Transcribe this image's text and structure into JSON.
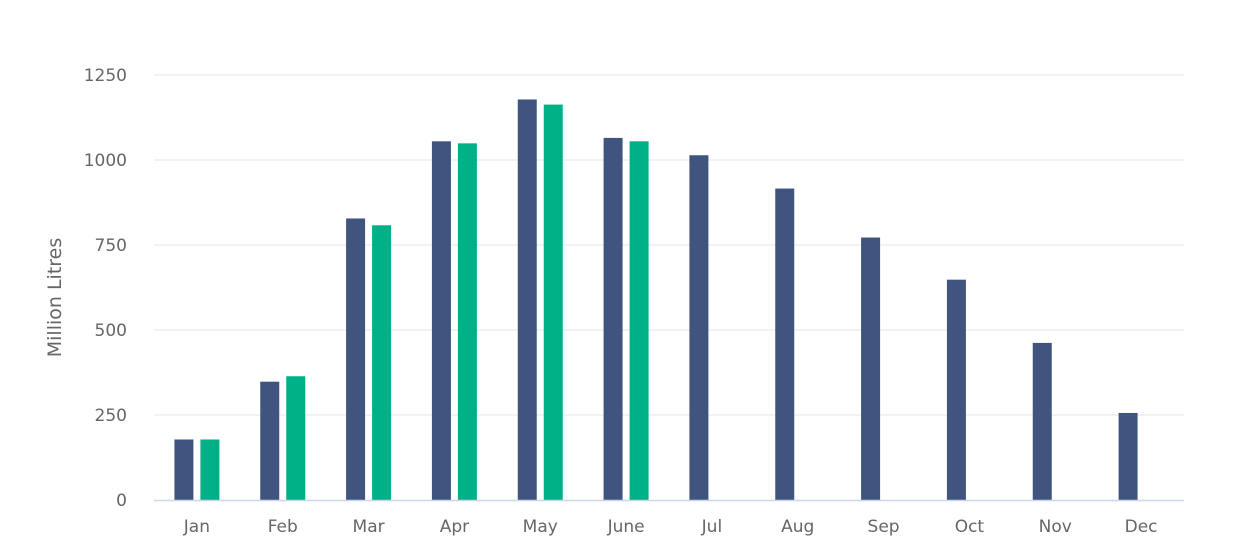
{
  "chart_data": {
    "type": "bar",
    "title": "",
    "xlabel": "",
    "ylabel": "Million Litres",
    "ylim": [
      0,
      1250
    ],
    "yticks": [
      0,
      250,
      500,
      750,
      1000,
      1250
    ],
    "grid": true,
    "legend": "none",
    "categories": [
      "Jan",
      "Feb",
      "Mar",
      "Apr",
      "May",
      "June",
      "Jul",
      "Aug",
      "Sep",
      "Oct",
      "Nov",
      "Dec"
    ],
    "series": [
      {
        "color": "#3f5580",
        "values": [
          178,
          348,
          828,
          1055,
          1178,
          1065,
          1014,
          916,
          772,
          648,
          462,
          256
        ]
      },
      {
        "color": "#00b087",
        "values": [
          178,
          364,
          808,
          1049,
          1163,
          1055,
          null,
          null,
          null,
          null,
          null,
          null
        ]
      }
    ],
    "colors": {
      "grid": "#e6e6e6",
      "axis": "#ccd6eb",
      "text": "#666666"
    }
  }
}
